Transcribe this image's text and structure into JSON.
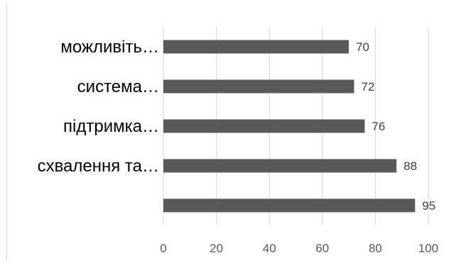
{
  "chart_data": {
    "type": "bar",
    "orientation": "horizontal",
    "categories": [
      "можливіть…",
      "система…",
      "підтримка…",
      "схвалення та…",
      ""
    ],
    "values": [
      70,
      72,
      76,
      88,
      95
    ],
    "data_labels": [
      "70",
      "72",
      "76",
      "88",
      "95"
    ],
    "xlim": [
      0,
      100
    ],
    "xticks": [
      "0",
      "20",
      "40",
      "60",
      "80",
      "100"
    ],
    "grid": "vertical",
    "legend": "none",
    "bar_color": "#595959",
    "grid_color": "#d9d9d9"
  }
}
